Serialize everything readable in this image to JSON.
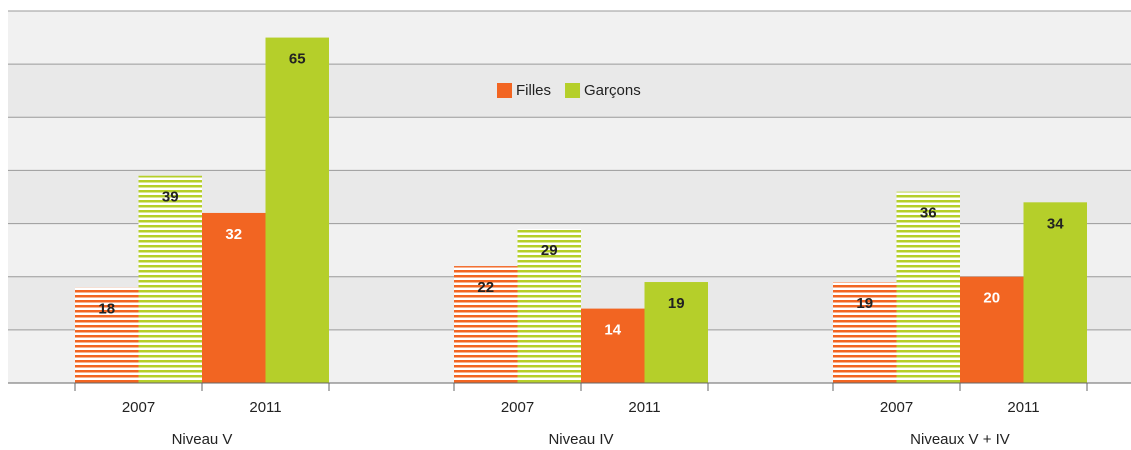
{
  "chart_data": {
    "type": "bar",
    "groups": [
      "Niveau V",
      "Niveau IV",
      "Niveaux V + IV"
    ],
    "categories": [
      "2007",
      "2011",
      "2007",
      "2011",
      "2007",
      "2011"
    ],
    "hatch": [
      true,
      false,
      true,
      false,
      true,
      false
    ],
    "series": [
      {
        "name": "Filles",
        "color": "#f26522",
        "values": [
          18,
          32,
          22,
          14,
          19,
          20
        ]
      },
      {
        "name": "Garçons",
        "color": "#b5cf2a",
        "values": [
          39,
          65,
          29,
          19,
          36,
          34
        ]
      }
    ],
    "ylim": [
      0,
      70
    ],
    "yticks": [
      0,
      10,
      20,
      30,
      40,
      50,
      60,
      70
    ],
    "grid": true
  }
}
